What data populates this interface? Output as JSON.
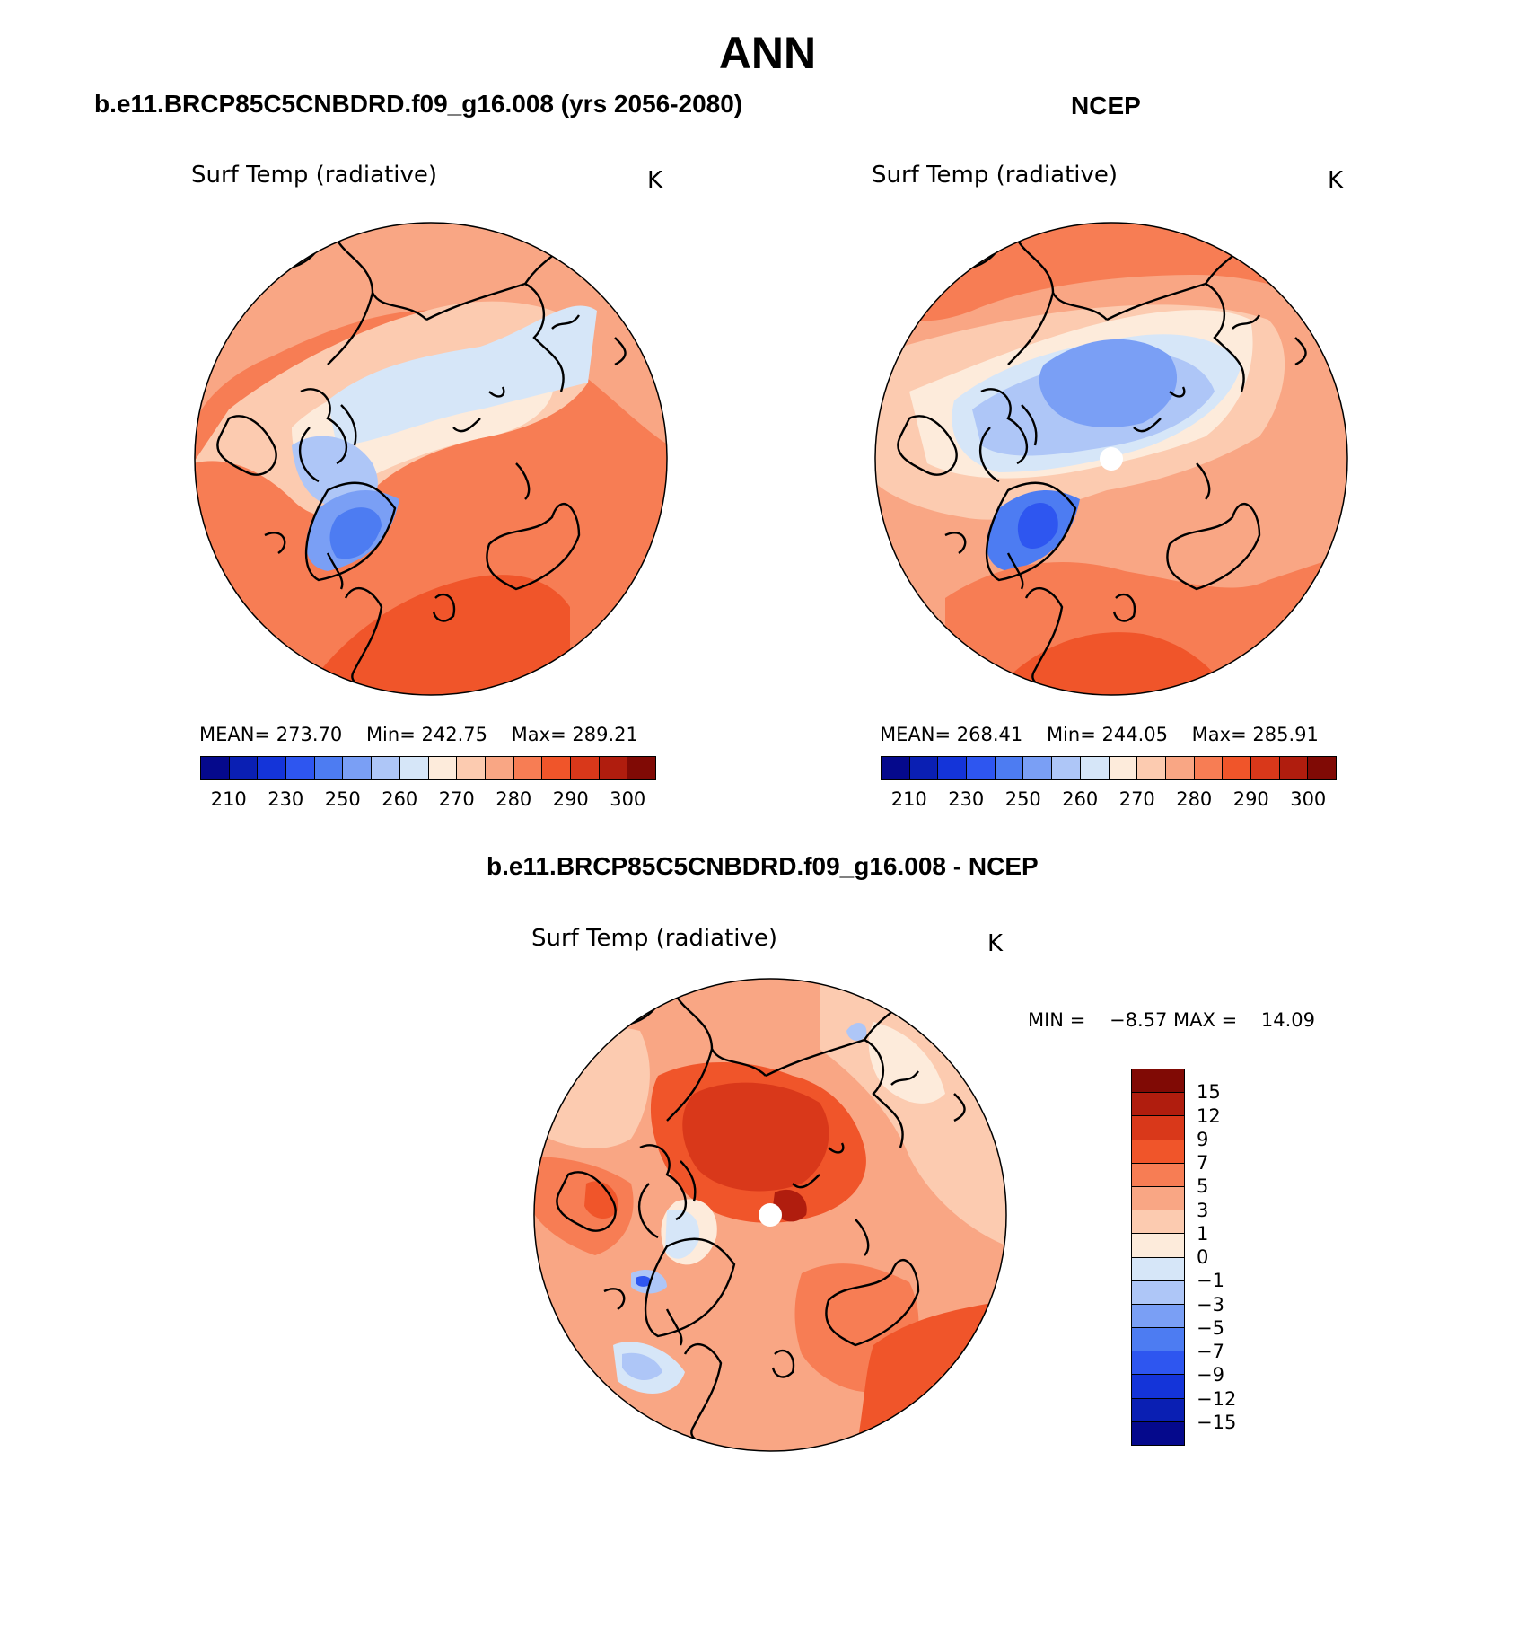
{
  "figure_title": "ANN",
  "panels": {
    "model": {
      "title": "b.e11.BRCP85C5CNBDRD.f09_g16.008 (yrs 2056-2080)",
      "variable": "Surf Temp (radiative)",
      "units": "K",
      "mean_label": "MEAN=",
      "mean": "273.70",
      "min_label": "Min=",
      "min": "242.75",
      "max_label": "Max=",
      "max": "289.21"
    },
    "obs": {
      "title": "NCEP",
      "variable": "Surf Temp (radiative)",
      "units": "K",
      "mean_label": "MEAN=",
      "mean": "268.41",
      "min_label": "Min=",
      "min": "244.05",
      "max_label": "Max=",
      "max": "285.91"
    },
    "diff": {
      "title": "b.e11.BRCP85C5CNBDRD.f09_g16.008 - NCEP",
      "variable": "Surf Temp (radiative)",
      "units": "K",
      "min_label": "MIN =",
      "min": "−8.57",
      "max_label": "MAX =",
      "max": "14.09"
    }
  },
  "abs_colorbar": {
    "colors": [
      "#05098c",
      "#0a1fb3",
      "#1434d9",
      "#2e56f0",
      "#4d7cf2",
      "#7a9ff5",
      "#aec6f7",
      "#d6e6f8",
      "#fdebdb",
      "#fccbb0",
      "#f9a684",
      "#f77d54",
      "#f0552a",
      "#d9381a",
      "#b01d0e",
      "#800a05"
    ],
    "tick_labels": [
      "210",
      "230",
      "250",
      "260",
      "270",
      "280",
      "290",
      "300"
    ]
  },
  "diff_colorbar": {
    "colors_top_to_bottom": [
      "#800a05",
      "#b01d0e",
      "#d9381a",
      "#f0552a",
      "#f77d54",
      "#f9a684",
      "#fccbb0",
      "#fdebdb",
      "#d6e6f8",
      "#aec6f7",
      "#7a9ff5",
      "#4d7cf2",
      "#2e56f0",
      "#1434d9",
      "#0a1fb3",
      "#05098c"
    ],
    "tick_labels": [
      "15",
      "12",
      "9",
      "7",
      "5",
      "3",
      "1",
      "0",
      "−1",
      "−3",
      "−5",
      "−7",
      "−9",
      "−12",
      "−15"
    ]
  },
  "icons": [
    "north-pole-stereographic-map"
  ]
}
